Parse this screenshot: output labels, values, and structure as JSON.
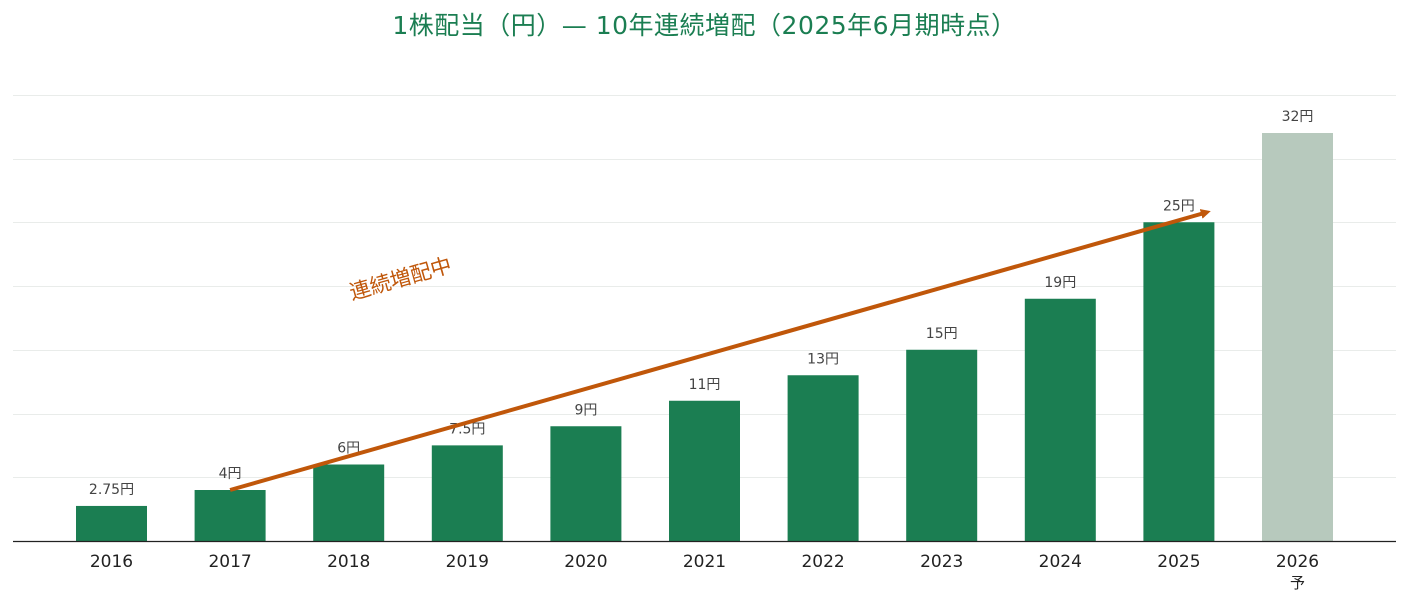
{
  "chart_data": {
    "type": "bar",
    "title": "1株配当（円）— 10年連続増配（2025年6月期時点）",
    "categories": [
      "2016",
      "2017",
      "2018",
      "2019",
      "2020",
      "2021",
      "2022",
      "2023",
      "2024",
      "2025",
      "2026"
    ],
    "category_sublabels": [
      "",
      "",
      "",
      "",
      "",
      "",
      "",
      "",
      "",
      "",
      "予"
    ],
    "values": [
      2.75,
      4,
      6,
      7.5,
      9,
      11,
      13,
      15,
      19,
      25,
      32
    ],
    "value_labels": [
      "2.75円",
      "4円",
      "6円",
      "7.5円",
      "9円",
      "11円",
      "13円",
      "15円",
      "19円",
      "25円",
      "32円"
    ],
    "forecast": [
      false,
      false,
      false,
      false,
      false,
      false,
      false,
      false,
      false,
      false,
      true
    ],
    "xlabel": "",
    "ylabel": "",
    "ylim": [
      0,
      35
    ],
    "grid": true,
    "colors": {
      "actual": "#1b7e52",
      "forecast": "#b7c9bd",
      "title": "#1b7e52",
      "annotation": "#c0570a"
    },
    "annotation": {
      "text": "連続増配中",
      "from_category": "2017",
      "to_category": "2025"
    }
  }
}
